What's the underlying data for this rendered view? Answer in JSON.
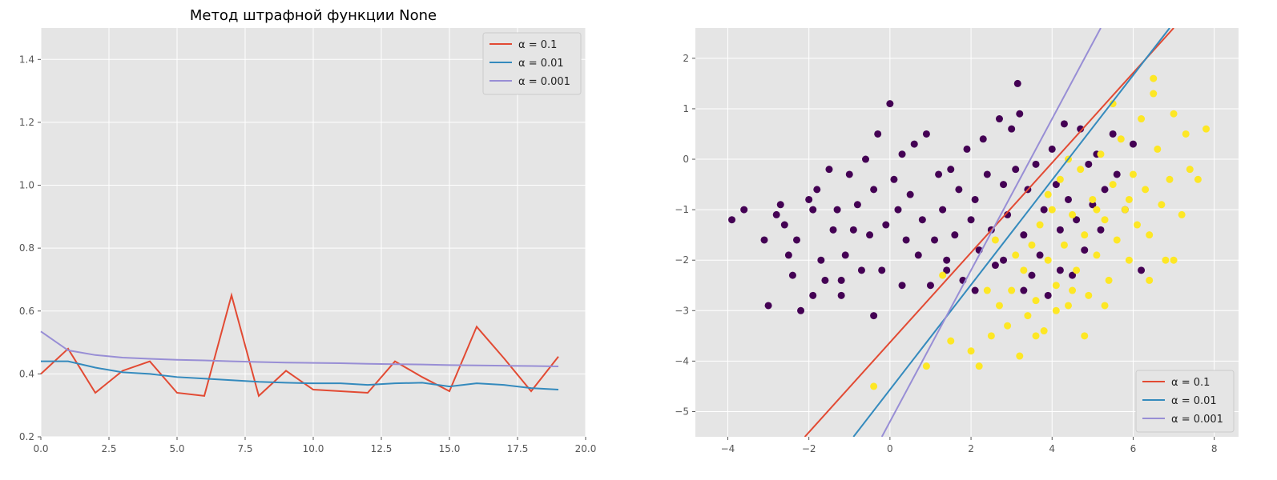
{
  "style": {
    "background": "#E5E5E5",
    "grid_color": "#FFFFFF",
    "tick_color": "#555555",
    "series_colors": [
      "#E24A33",
      "#348ABD",
      "#988ED5"
    ],
    "class_colors": [
      "#440154",
      "#FDE725"
    ]
  },
  "chart_data": [
    {
      "type": "line",
      "title": "Метод штрафной функции None",
      "xlabel": "",
      "ylabel": "",
      "xlim": [
        0,
        20
      ],
      "ylim": [
        0.2,
        1.5
      ],
      "grid": true,
      "legend_placement": "top-right",
      "xticks": [
        "0.0",
        "2.5",
        "5.0",
        "7.5",
        "10.0",
        "12.5",
        "15.0",
        "17.5",
        "20.0"
      ],
      "xtick_values": [
        0,
        2.5,
        5,
        7.5,
        10,
        12.5,
        15,
        17.5,
        20
      ],
      "yticks": [
        "0.2",
        "0.4",
        "0.6",
        "0.8",
        "1.0",
        "1.2",
        "1.4"
      ],
      "ytick_values": [
        0.2,
        0.4,
        0.6,
        0.8,
        1.0,
        1.2,
        1.4
      ],
      "x": [
        0,
        1,
        2,
        3,
        4,
        5,
        6,
        7,
        8,
        9,
        10,
        11,
        12,
        13,
        14,
        15,
        16,
        17,
        18,
        19
      ],
      "series": [
        {
          "name": "α = 0.1",
          "values": [
            0.4,
            0.48,
            0.34,
            0.41,
            0.44,
            0.34,
            0.33,
            0.65,
            0.33,
            0.41,
            0.35,
            0.345,
            0.34,
            0.44,
            0.39,
            0.345,
            0.55,
            0.45,
            0.345,
            0.455
          ]
        },
        {
          "name": "α = 0.01",
          "values": [
            0.44,
            0.44,
            0.42,
            0.405,
            0.4,
            0.39,
            0.385,
            0.38,
            0.375,
            0.372,
            0.37,
            0.37,
            0.365,
            0.37,
            0.372,
            0.36,
            0.37,
            0.365,
            0.355,
            0.35
          ]
        },
        {
          "name": "α = 0.001",
          "values": [
            0.535,
            0.475,
            0.46,
            0.452,
            0.448,
            0.445,
            0.443,
            0.44,
            0.438,
            0.436,
            0.435,
            0.434,
            0.432,
            0.431,
            0.43,
            0.428,
            0.427,
            0.426,
            0.425,
            0.424
          ]
        }
      ]
    },
    {
      "type": "scatter",
      "title": "",
      "xlabel": "",
      "ylabel": "",
      "xlim": [
        -4.8,
        8.6
      ],
      "ylim": [
        -5.5,
        2.6
      ],
      "grid": true,
      "legend_placement": "bottom-right",
      "xticks": [
        "−4",
        "−2",
        "0",
        "2",
        "4",
        "6",
        "8"
      ],
      "xtick_values": [
        -4,
        -2,
        0,
        2,
        4,
        6,
        8
      ],
      "yticks": [
        "2",
        "1",
        "0",
        "−1",
        "−2",
        "−3",
        "−4",
        "−5"
      ],
      "ytick_values": [
        2,
        1,
        0,
        -1,
        -2,
        -3,
        -4,
        -5
      ],
      "classes": [
        {
          "label": "0",
          "points": [
            [
              -3.9,
              -1.2
            ],
            [
              -3.6,
              -1.0
            ],
            [
              -3.1,
              -1.6
            ],
            [
              -3.0,
              -2.9
            ],
            [
              -2.8,
              -1.1
            ],
            [
              -2.7,
              -0.9
            ],
            [
              -2.6,
              -1.3
            ],
            [
              -2.5,
              -1.9
            ],
            [
              -2.4,
              -2.3
            ],
            [
              -2.3,
              -1.6
            ],
            [
              -2.2,
              -3.0
            ],
            [
              -2.0,
              -0.8
            ],
            [
              -1.9,
              -1.0
            ],
            [
              -1.8,
              -0.6
            ],
            [
              -1.7,
              -2.0
            ],
            [
              -1.6,
              -2.4
            ],
            [
              -1.5,
              -0.2
            ],
            [
              -1.4,
              -1.4
            ],
            [
              -1.3,
              -1.0
            ],
            [
              -1.2,
              -2.7
            ],
            [
              -1.1,
              -1.9
            ],
            [
              -1.0,
              -0.3
            ],
            [
              -0.9,
              -1.4
            ],
            [
              -0.8,
              -0.9
            ],
            [
              -0.7,
              -2.2
            ],
            [
              -0.6,
              0.0
            ],
            [
              -0.5,
              -1.5
            ],
            [
              -0.4,
              -0.6
            ],
            [
              -0.3,
              0.5
            ],
            [
              -0.2,
              -2.2
            ],
            [
              -0.1,
              -1.3
            ],
            [
              0.0,
              1.1
            ],
            [
              0.1,
              -0.4
            ],
            [
              0.2,
              -1.0
            ],
            [
              0.3,
              0.1
            ],
            [
              0.4,
              -1.6
            ],
            [
              0.5,
              -0.7
            ],
            [
              0.6,
              0.3
            ],
            [
              0.7,
              -1.9
            ],
            [
              0.8,
              -1.2
            ],
            [
              0.9,
              0.5
            ],
            [
              1.0,
              -2.5
            ],
            [
              1.1,
              -1.6
            ],
            [
              1.2,
              -0.3
            ],
            [
              1.3,
              -1.0
            ],
            [
              1.4,
              -2.0
            ],
            [
              1.5,
              -0.2
            ],
            [
              1.6,
              -1.5
            ],
            [
              1.7,
              -0.6
            ],
            [
              1.8,
              -2.4
            ],
            [
              1.9,
              0.2
            ],
            [
              2.0,
              -1.2
            ],
            [
              2.1,
              -0.8
            ],
            [
              2.2,
              -1.8
            ],
            [
              2.3,
              0.4
            ],
            [
              2.4,
              -0.3
            ],
            [
              2.5,
              -1.4
            ],
            [
              2.6,
              -2.1
            ],
            [
              2.7,
              0.8
            ],
            [
              2.8,
              -0.5
            ],
            [
              2.9,
              -1.1
            ],
            [
              3.0,
              0.6
            ],
            [
              3.1,
              -0.2
            ],
            [
              3.15,
              1.5
            ],
            [
              3.2,
              0.9
            ],
            [
              3.3,
              -1.5
            ],
            [
              3.4,
              -0.6
            ],
            [
              3.5,
              -2.3
            ],
            [
              3.6,
              -0.1
            ],
            [
              3.7,
              -1.9
            ],
            [
              3.8,
              -1.0
            ],
            [
              3.9,
              -2.7
            ],
            [
              4.0,
              0.2
            ],
            [
              4.1,
              -0.5
            ],
            [
              4.2,
              -1.4
            ],
            [
              4.3,
              0.7
            ],
            [
              4.4,
              -0.8
            ],
            [
              4.5,
              -2.3
            ],
            [
              4.6,
              -1.2
            ],
            [
              4.7,
              0.6
            ],
            [
              4.8,
              -1.8
            ],
            [
              4.9,
              -0.1
            ],
            [
              5.0,
              -0.9
            ],
            [
              5.1,
              0.1
            ],
            [
              5.2,
              -1.4
            ],
            [
              5.3,
              -0.6
            ],
            [
              5.5,
              0.5
            ],
            [
              5.6,
              -0.3
            ],
            [
              5.8,
              -1.0
            ],
            [
              6.0,
              0.3
            ],
            [
              6.2,
              -2.2
            ],
            [
              -1.9,
              -2.7
            ],
            [
              -1.2,
              -2.4
            ],
            [
              -0.4,
              -3.1
            ],
            [
              0.3,
              -2.5
            ],
            [
              1.4,
              -2.2
            ],
            [
              2.1,
              -2.6
            ],
            [
              2.8,
              -2.0
            ],
            [
              3.3,
              -2.6
            ],
            [
              4.2,
              -2.2
            ]
          ]
        },
        {
          "label": "1",
          "points": [
            [
              -0.4,
              -4.5
            ],
            [
              0.9,
              -4.1
            ],
            [
              1.5,
              -3.6
            ],
            [
              2.0,
              -3.8
            ],
            [
              2.2,
              -4.1
            ],
            [
              2.5,
              -3.5
            ],
            [
              2.7,
              -2.9
            ],
            [
              2.9,
              -3.3
            ],
            [
              3.0,
              -2.6
            ],
            [
              3.2,
              -3.9
            ],
            [
              3.3,
              -2.2
            ],
            [
              3.4,
              -3.1
            ],
            [
              3.5,
              -1.7
            ],
            [
              3.6,
              -2.8
            ],
            [
              3.7,
              -1.3
            ],
            [
              3.8,
              -3.4
            ],
            [
              3.9,
              -2.0
            ],
            [
              4.0,
              -1.0
            ],
            [
              4.1,
              -2.5
            ],
            [
              4.2,
              -0.4
            ],
            [
              4.3,
              -1.7
            ],
            [
              4.4,
              -2.9
            ],
            [
              4.5,
              -1.1
            ],
            [
              4.6,
              -2.2
            ],
            [
              4.7,
              -0.2
            ],
            [
              4.8,
              -1.5
            ],
            [
              4.9,
              -2.7
            ],
            [
              5.0,
              -0.8
            ],
            [
              5.1,
              -1.9
            ],
            [
              5.2,
              0.1
            ],
            [
              5.3,
              -1.2
            ],
            [
              5.4,
              -2.4
            ],
            [
              5.5,
              -0.5
            ],
            [
              5.6,
              -1.6
            ],
            [
              5.7,
              0.4
            ],
            [
              5.8,
              -1.0
            ],
            [
              5.9,
              -2.0
            ],
            [
              6.0,
              -0.3
            ],
            [
              6.1,
              -1.3
            ],
            [
              6.2,
              0.8
            ],
            [
              6.3,
              -0.6
            ],
            [
              6.4,
              -1.5
            ],
            [
              6.5,
              1.3
            ],
            [
              6.6,
              0.2
            ],
            [
              6.7,
              -0.9
            ],
            [
              6.8,
              -2.0
            ],
            [
              6.9,
              -0.4
            ],
            [
              7.0,
              0.9
            ],
            [
              7.2,
              -1.1
            ],
            [
              7.3,
              0.5
            ],
            [
              7.4,
              -0.2
            ],
            [
              7.6,
              -0.4
            ],
            [
              7.8,
              0.6
            ],
            [
              6.5,
              1.6
            ],
            [
              5.5,
              1.1
            ],
            [
              4.5,
              -2.6
            ],
            [
              3.1,
              -1.9
            ],
            [
              2.4,
              -2.6
            ],
            [
              1.3,
              -2.3
            ],
            [
              2.6,
              -1.6
            ],
            [
              3.9,
              -0.7
            ],
            [
              4.4,
              0.0
            ],
            [
              5.1,
              -1.0
            ],
            [
              5.9,
              -0.8
            ],
            [
              6.4,
              -2.4
            ],
            [
              5.3,
              -2.9
            ],
            [
              4.1,
              -3.0
            ],
            [
              3.6,
              -3.5
            ],
            [
              4.8,
              -3.5
            ],
            [
              7.0,
              -2.0
            ]
          ]
        }
      ],
      "series": [
        {
          "name": "α = 0.1",
          "x": [
            -2.1,
            7.0
          ],
          "y": [
            -5.5,
            2.6
          ]
        },
        {
          "name": "α = 0.01",
          "x": [
            -0.9,
            6.9
          ],
          "y": [
            -5.5,
            2.6
          ]
        },
        {
          "name": "α = 0.001",
          "x": [
            -0.2,
            5.2
          ],
          "y": [
            -5.5,
            2.6
          ]
        }
      ]
    }
  ]
}
